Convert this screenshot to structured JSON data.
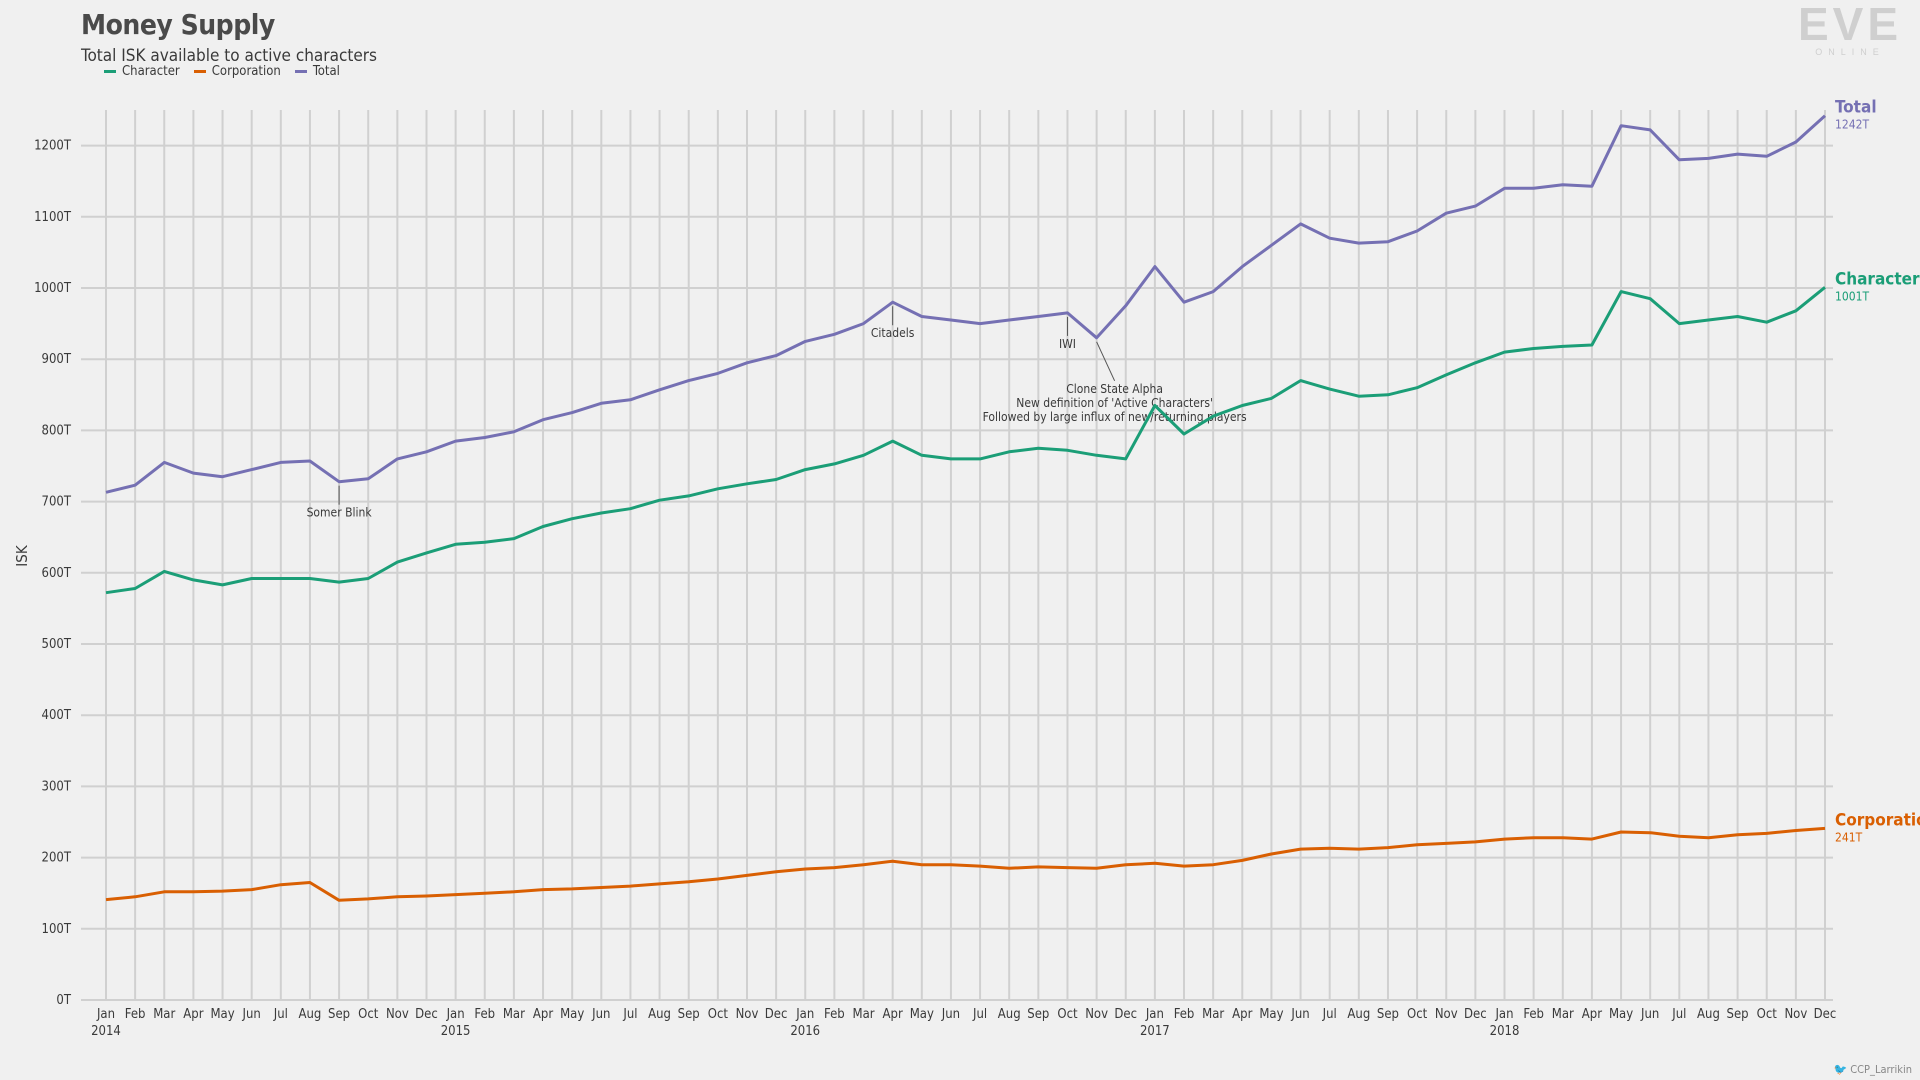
{
  "header": {
    "title": "Money Supply",
    "subtitle": "Total ISK available to active characters"
  },
  "logo": {
    "main": "EVE",
    "sub": "ONLINE"
  },
  "credit": {
    "icon": "twitter-bird-icon",
    "handle": "CCP_Larrikin"
  },
  "colors": {
    "Character": "#1b9e77",
    "Corporation": "#d95f02",
    "Total": "#7570b3",
    "grid": "#d0d0d0",
    "background": "#f0f0f0"
  },
  "chart_data": {
    "type": "line",
    "title": "Money Supply",
    "subtitle": "Total ISK available to active characters",
    "ylabel": "ISK",
    "xlabel": "",
    "ylim": [
      0,
      1250
    ],
    "y_ticks": [
      "0T",
      "100T",
      "200T",
      "300T",
      "400T",
      "500T",
      "600T",
      "700T",
      "800T",
      "900T",
      "1000T",
      "1100T",
      "1200T"
    ],
    "grid": "on",
    "legend": "top-left",
    "x_month_ticks": [
      "Jan",
      "Feb",
      "Mar",
      "Apr",
      "May",
      "Jun",
      "Jul",
      "Aug",
      "Sep",
      "Oct",
      "Nov",
      "Dec",
      "Jan",
      "Feb",
      "Mar",
      "Apr",
      "May",
      "Jun",
      "Jul",
      "Aug",
      "Sep",
      "Oct",
      "Nov",
      "Dec",
      "Jan",
      "Feb",
      "Mar",
      "Apr",
      "May",
      "Jun",
      "Jul",
      "Aug",
      "Sep",
      "Oct",
      "Nov",
      "Dec",
      "Jan",
      "Feb",
      "Mar",
      "Apr",
      "May",
      "Jun",
      "Jul",
      "Aug",
      "Sep",
      "Oct",
      "Nov",
      "Dec",
      "Jan",
      "Feb",
      "Mar",
      "Apr",
      "May",
      "Jun",
      "Jul",
      "Aug",
      "Sep",
      "Oct",
      "Nov",
      "Dec"
    ],
    "x_year_ticks": [
      "2014",
      "2015",
      "2016",
      "2017",
      "2018"
    ],
    "x": [
      "2014-01",
      "2014-02",
      "2014-03",
      "2014-04",
      "2014-05",
      "2014-06",
      "2014-07",
      "2014-08",
      "2014-09",
      "2014-10",
      "2014-11",
      "2014-12",
      "2015-01",
      "2015-02",
      "2015-03",
      "2015-04",
      "2015-05",
      "2015-06",
      "2015-07",
      "2015-08",
      "2015-09",
      "2015-10",
      "2015-11",
      "2015-12",
      "2016-01",
      "2016-02",
      "2016-03",
      "2016-04",
      "2016-05",
      "2016-06",
      "2016-07",
      "2016-08",
      "2016-09",
      "2016-10",
      "2016-11",
      "2016-12",
      "2017-01",
      "2017-02",
      "2017-03",
      "2017-04",
      "2017-05",
      "2017-06",
      "2017-07",
      "2017-08",
      "2017-09",
      "2017-10",
      "2017-11",
      "2017-12",
      "2018-01",
      "2018-02",
      "2018-03",
      "2018-04",
      "2018-05",
      "2018-06",
      "2018-07",
      "2018-08",
      "2018-09",
      "2018-10",
      "2018-11",
      "2018-12"
    ],
    "series": [
      {
        "name": "Character",
        "end_label": "Character",
        "end_value": "1001T",
        "values": [
          572,
          578,
          602,
          590,
          583,
          592,
          592,
          592,
          587,
          592,
          615,
          628,
          640,
          643,
          648,
          665,
          676,
          684,
          690,
          702,
          708,
          718,
          725,
          731,
          745,
          753,
          765,
          785,
          765,
          760,
          760,
          770,
          775,
          772,
          765,
          760,
          835,
          795,
          820,
          835,
          845,
          870,
          858,
          848,
          850,
          860,
          878,
          895,
          910,
          915,
          918,
          920,
          995,
          985,
          950,
          955,
          960,
          952,
          968,
          1001
        ]
      },
      {
        "name": "Corporation",
        "end_label": "Corporation",
        "end_value": "241T",
        "values": [
          141,
          145,
          152,
          152,
          153,
          155,
          162,
          165,
          140,
          142,
          145,
          146,
          148,
          150,
          152,
          155,
          156,
          158,
          160,
          163,
          166,
          170,
          175,
          180,
          184,
          186,
          190,
          195,
          190,
          190,
          188,
          185,
          187,
          186,
          185,
          190,
          192,
          188,
          190,
          196,
          205,
          212,
          213,
          212,
          214,
          218,
          220,
          222,
          226,
          228,
          228,
          226,
          236,
          235,
          230,
          228,
          232,
          234,
          238,
          241
        ]
      },
      {
        "name": "Total",
        "end_label": "Total",
        "end_value": "1242T",
        "values": [
          713,
          723,
          755,
          740,
          735,
          745,
          755,
          757,
          728,
          732,
          760,
          770,
          785,
          790,
          798,
          815,
          825,
          838,
          843,
          857,
          870,
          880,
          895,
          905,
          925,
          935,
          950,
          980,
          960,
          955,
          950,
          955,
          960,
          965,
          930,
          975,
          1030,
          980,
          995,
          1030,
          1060,
          1090,
          1070,
          1063,
          1065,
          1080,
          1105,
          1115,
          1140,
          1140,
          1145,
          1143,
          1228,
          1222,
          1180,
          1182,
          1188,
          1185,
          1205,
          1242
        ]
      }
    ],
    "annotations": [
      {
        "label": "Somer Blink",
        "x": "2014-09",
        "series": "Total"
      },
      {
        "label": "Citadels",
        "x": "2016-04",
        "series": "Total"
      },
      {
        "label": "IWI",
        "x": "2016-10",
        "series": "Total"
      },
      {
        "label": "Clone State Alpha",
        "x": "2016-11",
        "series": "Total"
      },
      {
        "label": "New definition of 'Active Characters'",
        "x": "2016-11",
        "series": "Total"
      },
      {
        "label": "Followed by large influx of new/returning players",
        "x": "2016-11",
        "series": "Total"
      }
    ]
  }
}
